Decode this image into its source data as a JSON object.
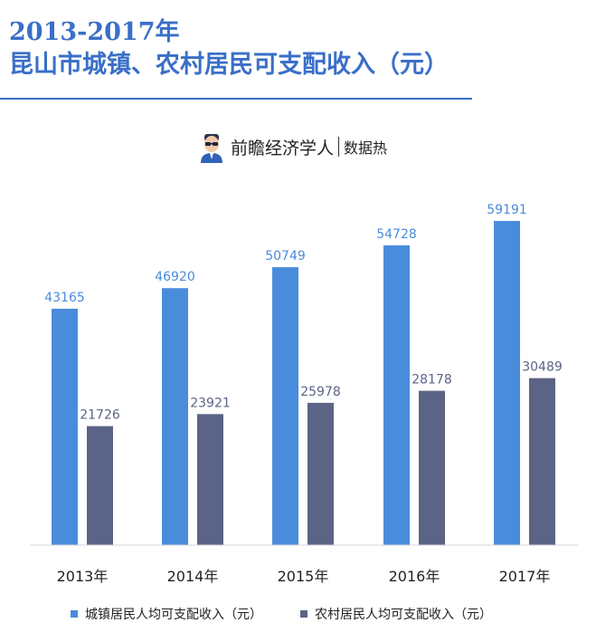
{
  "header": {
    "title_line1": "2013-2017年",
    "title_line2": "昆山市城镇、农村居民可支配收入（元）",
    "title_color": "#3a6fc8",
    "rule_color": "#3a6fc8"
  },
  "brand": {
    "name": "前瞻经济学人",
    "sub": "数据热"
  },
  "chart_data": {
    "type": "bar",
    "categories": [
      "2013年",
      "2014年",
      "2015年",
      "2016年",
      "2017年"
    ],
    "series": [
      {
        "name": "城镇居民人均可支配收入（元）",
        "values": [
          43165,
          46920,
          50749,
          54728,
          59191
        ],
        "color": "#4a8cdc"
      },
      {
        "name": "农村居民人均可支配收入（元）",
        "values": [
          21726,
          23921,
          25978,
          28178,
          30489
        ],
        "color": "#5b6486"
      }
    ],
    "ylim": [
      0,
      65000
    ],
    "grid": false,
    "legend_position": "bottom"
  }
}
